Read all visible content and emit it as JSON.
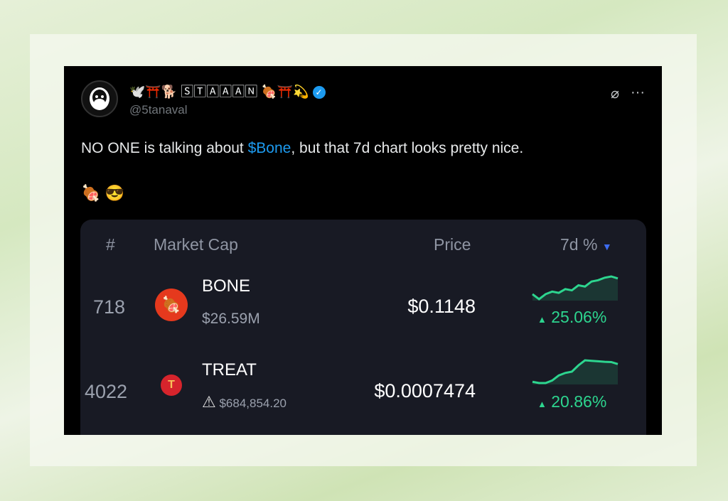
{
  "tweet": {
    "display_name": "🕊️⛩️🐕 🅂🅃🄰🄰🄰🄽 🍖⛩️💫",
    "handle": "@5tanaval",
    "verified": true,
    "text_before": "NO ONE is talking about ",
    "cashtag": "$Bone",
    "text_after": ", but that 7d chart looks pretty nice.",
    "emojis": "🍖 😎",
    "icons": [
      "grok-icon",
      "more-icon"
    ]
  },
  "table": {
    "headers": {
      "rank": "#",
      "market_cap": "Market Cap",
      "price": "Price",
      "change": "7d %"
    },
    "rows": [
      {
        "rank": "718",
        "symbol": "BONE",
        "market_cap": "$26.59M",
        "price": "$0.1148",
        "change": "25.06%",
        "warning": false,
        "sparkline": [
          3,
          1,
          3,
          4,
          3.5,
          5,
          4.5,
          6.5,
          6,
          8,
          8.5,
          9.5,
          10,
          9.2
        ]
      },
      {
        "rank": "4022",
        "symbol": "TREAT",
        "market_cap": "$684,854.20",
        "price": "$0.0007474",
        "change": "20.86%",
        "warning": true,
        "sparkline": [
          1.5,
          1,
          1,
          2,
          4,
          5,
          5.5,
          8,
          10,
          9.8,
          9.6,
          9.4,
          9.3,
          8.5
        ]
      }
    ]
  },
  "colors": {
    "positive": "#2dd58f",
    "link": "#1d9bf0",
    "card": "#181a24",
    "sort_arrow": "#3d6cf0"
  }
}
